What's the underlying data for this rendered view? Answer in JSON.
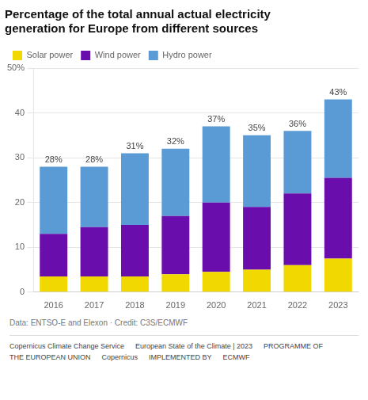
{
  "chart_data": {
    "type": "bar",
    "title": [
      "Percentage of the total annual actual electricity",
      "generation for Europe from different sources"
    ],
    "categories": [
      "2016",
      "2017",
      "2018",
      "2019",
      "2020",
      "2021",
      "2022",
      "2023"
    ],
    "series": [
      {
        "name": "Solar power",
        "color": "#f0d800",
        "values": [
          3.5,
          3.5,
          3.5,
          4.0,
          4.5,
          5.0,
          6.0,
          7.5
        ]
      },
      {
        "name": "Wind power",
        "color": "#6a0dad",
        "values": [
          9.5,
          11.0,
          11.5,
          13.0,
          15.5,
          14.0,
          16.0,
          18.0
        ]
      },
      {
        "name": "Hydro power",
        "color": "#5b9bd5",
        "values": [
          15.0,
          13.5,
          16.0,
          15.0,
          17.0,
          16.0,
          14.0,
          17.5
        ]
      }
    ],
    "totals": [
      28,
      28,
      31,
      32,
      37,
      35,
      36,
      43
    ],
    "total_labels": [
      "28%",
      "28%",
      "31%",
      "32%",
      "37%",
      "35%",
      "36%",
      "43%"
    ],
    "stacked": true,
    "ylim": [
      0,
      50
    ],
    "yticks": [
      0,
      10,
      20,
      30,
      40,
      {
        "value": 50,
        "label": "50%"
      }
    ],
    "grid": true,
    "legend": "upper left",
    "annotations": [
      "Data: ENTSO-E and Elexon · Credit: C3S/ECMWF",
      "Copernicus Climate Change Service",
      "European State of the Climate | 2023",
      "PROGRAMME OF",
      "THE EUROPEAN UNION",
      "Copernicus",
      "IMPLEMENTED BY",
      "ECMWF"
    ]
  }
}
